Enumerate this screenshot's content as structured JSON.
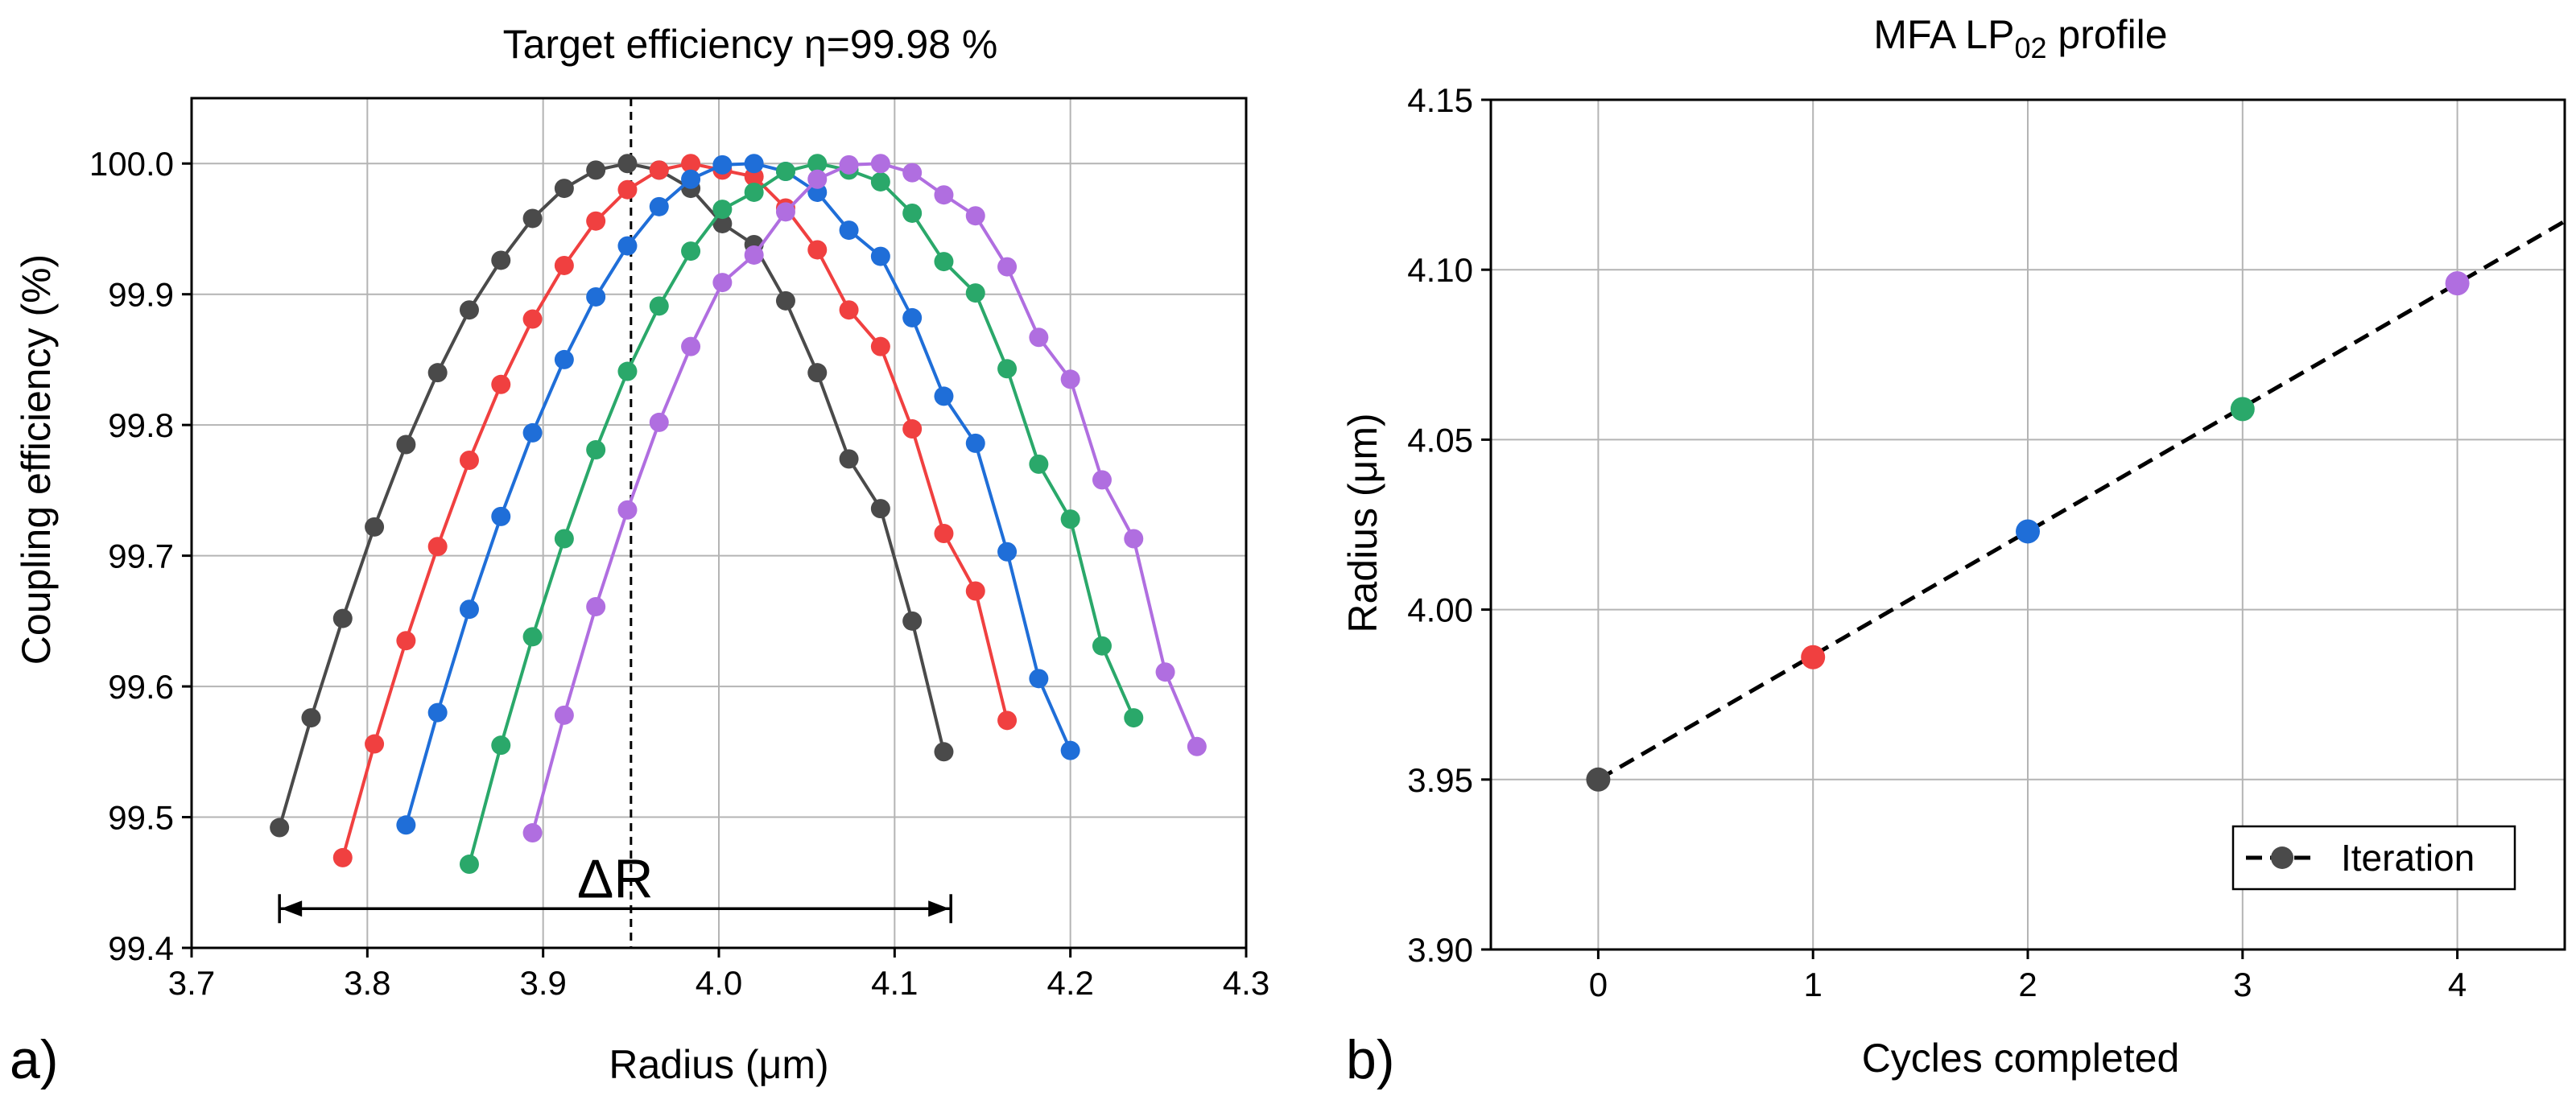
{
  "chart_data": [
    {
      "panel_label": "a)",
      "type": "line",
      "title_prefix": "Target efficiency η=",
      "title_value": "99.98",
      "title_unit": " %",
      "xlabel": "Radius (μm)",
      "ylabel": "Coupling efficiency (%)",
      "xlim": [
        3.7,
        4.3
      ],
      "ylim": [
        99.4,
        100.05
      ],
      "xticks": [
        3.7,
        3.8,
        3.9,
        4.0,
        4.1,
        4.2,
        4.3
      ],
      "xtick_labels": [
        "3.7",
        "3.8",
        "3.9",
        "4.0",
        "4.1",
        "4.2",
        "4.3"
      ],
      "yticks": [
        99.4,
        99.5,
        99.6,
        99.7,
        99.8,
        99.9,
        100.0
      ],
      "ytick_labels": [
        "99.4",
        "99.5",
        "99.6",
        "99.7",
        "99.8",
        "99.9",
        "100.0"
      ],
      "grid": true,
      "vline_x": 3.95,
      "annotation": {
        "text": "ΔR",
        "x_start": 3.75,
        "x_end": 4.132,
        "y": 99.43
      },
      "series": [
        {
          "name": "Iteration 0",
          "color": "#4a4a4a",
          "x": [
            3.75,
            3.768,
            3.786,
            3.804,
            3.822,
            3.84,
            3.858,
            3.876,
            3.894,
            3.912,
            3.93,
            3.948,
            3.966,
            3.984,
            4.002,
            4.02,
            4.038,
            4.056,
            4.074,
            4.092,
            4.11,
            4.128
          ],
          "y": [
            99.492,
            99.576,
            99.652,
            99.722,
            99.785,
            99.84,
            99.888,
            99.926,
            99.958,
            99.981,
            99.995,
            100.0,
            99.995,
            99.981,
            99.954,
            99.938,
            99.895,
            99.84,
            99.774,
            99.736,
            99.65,
            99.55
          ]
        },
        {
          "name": "Iteration 1",
          "color": "#f04040",
          "x": [
            3.786,
            3.804,
            3.822,
            3.84,
            3.858,
            3.876,
            3.894,
            3.912,
            3.93,
            3.948,
            3.966,
            3.984,
            4.002,
            4.02,
            4.038,
            4.056,
            4.074,
            4.092,
            4.11,
            4.128,
            4.146,
            4.164
          ],
          "y": [
            99.469,
            99.556,
            99.635,
            99.707,
            99.773,
            99.831,
            99.881,
            99.922,
            99.956,
            99.98,
            99.995,
            100.0,
            99.995,
            99.99,
            99.966,
            99.934,
            99.888,
            99.86,
            99.797,
            99.717,
            99.673,
            99.574
          ]
        },
        {
          "name": "Iteration 2",
          "color": "#1f6ed8",
          "x": [
            3.822,
            3.84,
            3.858,
            3.876,
            3.894,
            3.912,
            3.93,
            3.948,
            3.966,
            3.984,
            4.002,
            4.02,
            4.038,
            4.056,
            4.074,
            4.092,
            4.11,
            4.128,
            4.146,
            4.164,
            4.182,
            4.2
          ],
          "y": [
            99.494,
            99.58,
            99.659,
            99.73,
            99.794,
            99.85,
            99.898,
            99.937,
            99.967,
            99.988,
            99.999,
            100.0,
            99.994,
            99.978,
            99.949,
            99.929,
            99.882,
            99.822,
            99.786,
            99.703,
            99.606,
            99.551
          ]
        },
        {
          "name": "Iteration 3",
          "color": "#2aa86a",
          "x": [
            3.858,
            3.876,
            3.894,
            3.912,
            3.93,
            3.948,
            3.966,
            3.984,
            4.002,
            4.02,
            4.038,
            4.056,
            4.074,
            4.092,
            4.11,
            4.128,
            4.146,
            4.164,
            4.182,
            4.2,
            4.218,
            4.236
          ],
          "y": [
            99.464,
            99.555,
            99.638,
            99.713,
            99.781,
            99.841,
            99.891,
            99.933,
            99.965,
            99.978,
            99.994,
            100.0,
            99.995,
            99.986,
            99.962,
            99.925,
            99.901,
            99.843,
            99.77,
            99.728,
            99.631,
            99.576
          ]
        },
        {
          "name": "Iteration 4",
          "color": "#b06ee0",
          "x": [
            3.894,
            3.912,
            3.93,
            3.948,
            3.966,
            3.984,
            4.002,
            4.02,
            4.038,
            4.056,
            4.074,
            4.092,
            4.11,
            4.128,
            4.146,
            4.164,
            4.182,
            4.2,
            4.218,
            4.236,
            4.254,
            4.272
          ],
          "y": [
            99.488,
            99.578,
            99.661,
            99.735,
            99.802,
            99.86,
            99.909,
            99.93,
            99.963,
            99.988,
            99.999,
            100.0,
            99.993,
            99.976,
            99.96,
            99.921,
            99.867,
            99.835,
            99.758,
            99.713,
            99.611,
            99.554
          ]
        }
      ]
    },
    {
      "panel_label": "b)",
      "type": "line",
      "title_main": "MFA LP",
      "title_sub": "02",
      "title_suffix": " profile",
      "xlabel": "Cycles completed",
      "ylabel": "Radius (μm)",
      "xlim": [
        -0.5,
        4.5
      ],
      "ylim": [
        3.9,
        4.15
      ],
      "xticks": [
        0,
        1,
        2,
        3,
        4
      ],
      "xtick_labels": [
        "0",
        "1",
        "2",
        "3",
        "4"
      ],
      "yticks": [
        3.9,
        3.95,
        4.0,
        4.05,
        4.1,
        4.15
      ],
      "ytick_labels": [
        "3.90",
        "3.95",
        "4.00",
        "4.05",
        "4.10",
        "4.15"
      ],
      "grid": true,
      "legend": "Iteration",
      "legend_position": "bottom-right",
      "trend": {
        "slope": 0.0365,
        "intercept": 3.95
      },
      "points": [
        {
          "x": 0,
          "y": 3.95,
          "color": "#4a4a4a"
        },
        {
          "x": 1,
          "y": 3.986,
          "color": "#f04040"
        },
        {
          "x": 2,
          "y": 4.023,
          "color": "#1f6ed8"
        },
        {
          "x": 3,
          "y": 4.059,
          "color": "#2aa86a"
        },
        {
          "x": 4,
          "y": 4.096,
          "color": "#b06ee0"
        }
      ]
    }
  ]
}
